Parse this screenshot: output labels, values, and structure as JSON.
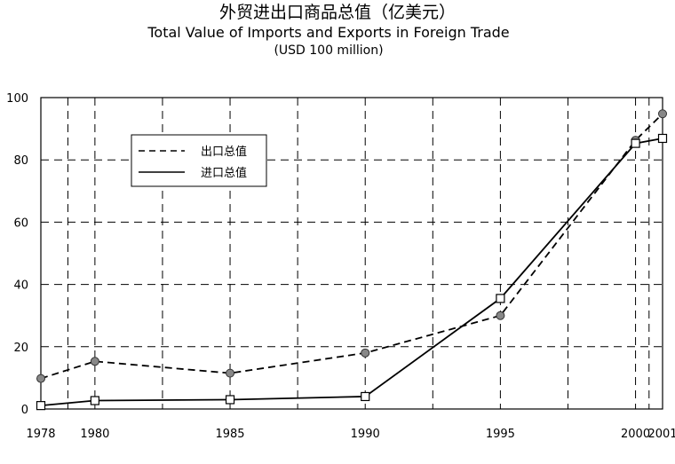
{
  "chart_data": {
    "type": "line",
    "title_zh": "外贸进出口商品总值（亿美元）",
    "title_en": "Total Value of Imports and Exports in Foreign Trade",
    "subtitle": "(USD 100 million)",
    "xlabel": "",
    "ylabel": "",
    "x": [
      1978,
      1980,
      1985,
      1990,
      1995,
      2000,
      2001
    ],
    "x_ticks": [
      1978,
      1980,
      1985,
      1990,
      1995,
      2000,
      2001
    ],
    "xlim": [
      1978,
      2001
    ],
    "ylim": [
      0,
      100
    ],
    "y_ticks": [
      0,
      20,
      40,
      60,
      80,
      100
    ],
    "grid": true,
    "legend_position": "top-left",
    "series": [
      {
        "name": "出口总值",
        "line_style": "dashed",
        "marker": "circle",
        "values": [
          9.8,
          15.3,
          11.5,
          18.0,
          30.0,
          86.3,
          94.8
        ]
      },
      {
        "name": "进口总值",
        "line_style": "solid",
        "marker": "square",
        "values": [
          1.1,
          2.7,
          3.0,
          4.0,
          35.5,
          85.3,
          86.9
        ]
      }
    ]
  },
  "colors": {
    "line": "#000000",
    "grid": "#000000",
    "marker_circle": "#888888",
    "marker_square": "#ffffff"
  }
}
